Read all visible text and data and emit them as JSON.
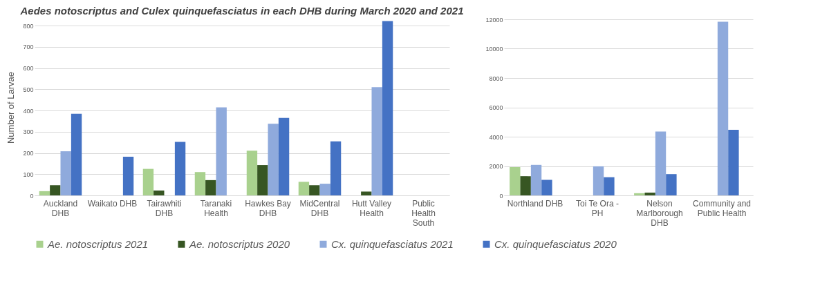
{
  "chart_data": [
    {
      "type": "bar",
      "title": "Aedes notoscriptus and Culex quinquefasciatus in each DHB during March 2020 and 2021",
      "ylabel": "Number of Larvae",
      "categories": [
        "Auckland DHB",
        "Waikato DHB",
        "Tairawhiti DHB",
        "Taranaki Health",
        "Hawkes Bay DHB",
        "MidCentral DHB",
        "Hutt Valley Health",
        "Public Health South"
      ],
      "ylim": [
        0,
        830
      ],
      "yticks": [
        0,
        100,
        200,
        300,
        400,
        500,
        600,
        700,
        800
      ],
      "grid": "y",
      "legend": "bottom",
      "series": [
        {
          "name": "Ae. notoscriptus 2021",
          "color": "#a9d18e",
          "values": [
            20,
            0,
            125,
            110,
            211,
            64,
            0,
            0
          ]
        },
        {
          "name": "Ae. notoscriptus 2020",
          "color": "#375623",
          "values": [
            48,
            0,
            23,
            72,
            143,
            48,
            18,
            0
          ]
        },
        {
          "name": "Cx. quinquefasciatus 2021",
          "color": "#8faadc",
          "values": [
            208,
            0,
            0,
            415,
            338,
            55,
            510,
            0
          ]
        },
        {
          "name": "Cx. quinquefasciatus 2020",
          "color": "#4472c4",
          "values": [
            385,
            182,
            252,
            0,
            365,
            255,
            822,
            0
          ]
        }
      ]
    },
    {
      "type": "bar",
      "categories": [
        "Northland DHB",
        "Toi Te Ora - PH",
        "Nelson Marlborough DHB",
        "Community and Public Health"
      ],
      "ylim": [
        0,
        12000
      ],
      "yticks": [
        0,
        2000,
        4000,
        6000,
        8000,
        10000,
        12000
      ],
      "grid": "y",
      "legend": "bottom",
      "series": [
        {
          "name": "Ae. notoscriptus 2021",
          "color": "#a9d18e",
          "values": [
            1930,
            0,
            150,
            0
          ]
        },
        {
          "name": "Ae. notoscriptus 2020",
          "color": "#375623",
          "values": [
            1310,
            0,
            190,
            0
          ]
        },
        {
          "name": "Cx. quinquefasciatus 2021",
          "color": "#8faadc",
          "values": [
            2080,
            1980,
            4350,
            11830
          ]
        },
        {
          "name": "Cx. quinquefasciatus 2020",
          "color": "#4472c4",
          "values": [
            1060,
            1240,
            1450,
            4470
          ]
        }
      ]
    }
  ]
}
